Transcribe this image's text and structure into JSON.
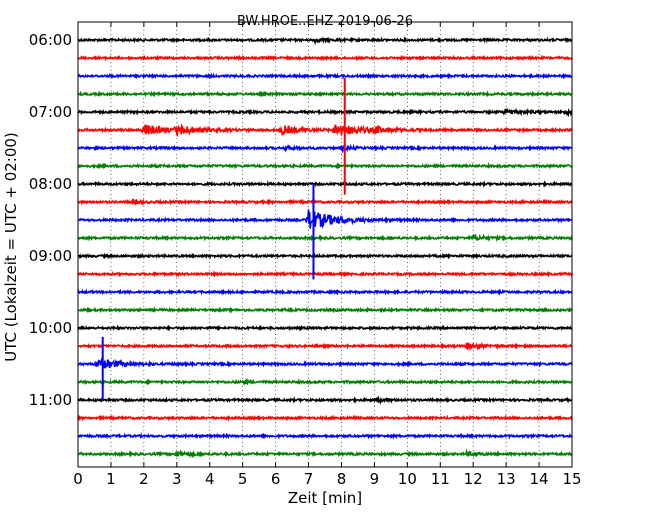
{
  "chart_data": {
    "type": "line",
    "title": "BW.HROE..EHZ 2019-06-26",
    "xlabel": "Zeit  [min]",
    "ylabel": "UTC (Lokalzeit = UTC + 02:00)",
    "xlim": [
      0,
      15
    ],
    "x_ticks": [
      "0",
      "1",
      "2",
      "3",
      "4",
      "5",
      "6",
      "7",
      "8",
      "9",
      "10",
      "11",
      "12",
      "13",
      "14",
      "15"
    ],
    "y_ticks": [
      "06:00",
      "07:00",
      "08:00",
      "09:00",
      "10:00",
      "11:00"
    ],
    "grid": "vertical dotted",
    "trace_minutes": 15,
    "traces_start": "06:00",
    "colors": [
      "#000000",
      "#ff0000",
      "#0000ff",
      "#008000"
    ],
    "trace_count": 24,
    "events": [
      {
        "trace": 0,
        "x": 7.2,
        "amp": 0.35,
        "dur": 0.5
      },
      {
        "trace": 4,
        "x": 13.0,
        "amp": 0.5,
        "dur": 1.0
      },
      {
        "trace": 4,
        "x": 14.8,
        "amp": 0.6,
        "dur": 0.3
      },
      {
        "trace": 5,
        "x": 2.0,
        "amp": 1.2,
        "dur": 1.2
      },
      {
        "trace": 5,
        "x": 3.0,
        "amp": 0.9,
        "dur": 1.4
      },
      {
        "trace": 5,
        "x": 6.2,
        "amp": 0.9,
        "dur": 1.0
      },
      {
        "trace": 5,
        "x": 7.8,
        "amp": 1.3,
        "dur": 1.5
      },
      {
        "trace": 5,
        "x": 9.0,
        "amp": 0.6,
        "dur": 0.8
      },
      {
        "trace": 6,
        "x": 6.3,
        "amp": 0.3,
        "dur": 0.8
      },
      {
        "trace": 6,
        "x": 8.0,
        "amp": 0.5,
        "dur": 0.5
      },
      {
        "trace": 9,
        "x": 1.6,
        "amp": 0.4,
        "dur": 0.6
      },
      {
        "trace": 10,
        "x": 7.0,
        "amp": 2.2,
        "dur": 1.5
      },
      {
        "trace": 11,
        "x": 12.0,
        "amp": 0.5,
        "dur": 0.8
      },
      {
        "trace": 17,
        "x": 11.8,
        "amp": 0.6,
        "dur": 0.8
      },
      {
        "trace": 18,
        "x": 0.6,
        "amp": 1.1,
        "dur": 1.3
      },
      {
        "trace": 19,
        "x": 5.0,
        "amp": 0.25,
        "dur": 0.3
      },
      {
        "trace": 20,
        "x": 9.1,
        "amp": 0.3,
        "dur": 0.6
      },
      {
        "trace": 23,
        "x": 3.0,
        "amp": 0.5,
        "dur": 0.8
      },
      {
        "trace": 23,
        "x": 11.8,
        "amp": 0.4,
        "dur": 0.6
      }
    ],
    "spikes": [
      {
        "trace": 5,
        "x": 8.1,
        "up": 2.9,
        "down": 3.6
      },
      {
        "trace": 10,
        "x": 7.15,
        "up": 2.0,
        "down": 3.3
      },
      {
        "trace": 18,
        "x": 0.75,
        "up": 1.5,
        "down": 2.0
      }
    ]
  }
}
